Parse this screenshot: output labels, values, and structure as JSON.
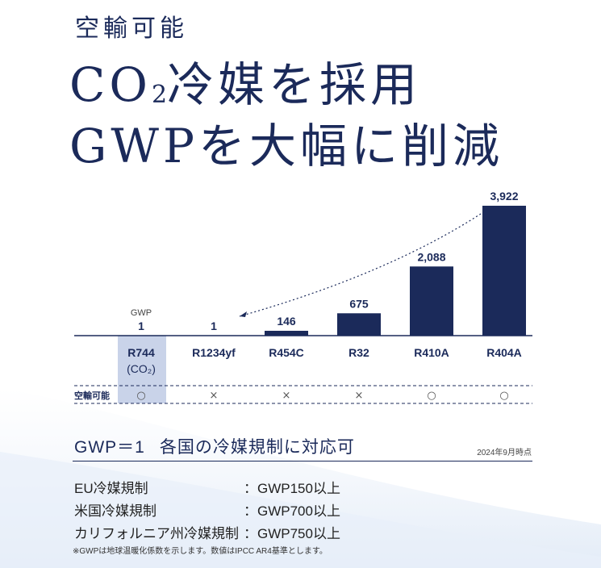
{
  "header": {
    "subtitle": "空輸可能",
    "line1_pre": "CO",
    "line1_sub": "2",
    "line1_post": "冷媒を採用",
    "line2": "GWPを大幅に削減"
  },
  "chart_data": {
    "type": "bar",
    "categories": [
      "R744",
      "R1234yf",
      "R454C",
      "R32",
      "R410A",
      "R404A"
    ],
    "category_sublabels": [
      "(CO₂)",
      "",
      "",
      "",
      "",
      ""
    ],
    "values": [
      1,
      1,
      146,
      675,
      2088,
      3922
    ],
    "value_labels": [
      "1",
      "1",
      "146",
      "675",
      "2,088",
      "3,922"
    ],
    "first_value_caption": "GWP",
    "ylim": [
      0,
      3922
    ],
    "highlight_category": "R744",
    "air_transport_label": "空輸可能",
    "air_transport": [
      "○",
      "×",
      "×",
      "×",
      "○",
      "○"
    ],
    "colors": {
      "bar": "#1b2a5a",
      "highlight": "#c9d3e9",
      "text": "#1b2a5a"
    }
  },
  "regulations": {
    "heading_left": "GWP＝1",
    "heading_right": "各国の冷媒規制に対応可",
    "date_note": "2024年9月時点",
    "rows": [
      {
        "label": "EU冷媒規制",
        "value": "：GWP150以上"
      },
      {
        "label": "米国冷媒規制",
        "value": "：GWP700以上"
      },
      {
        "label": "カリフォルニア州冷媒規制",
        "value": "：GWP750以上"
      }
    ],
    "footnote": "※GWPは地球温暖化係数を示します。数値はIPCC AR4基準とします。"
  }
}
